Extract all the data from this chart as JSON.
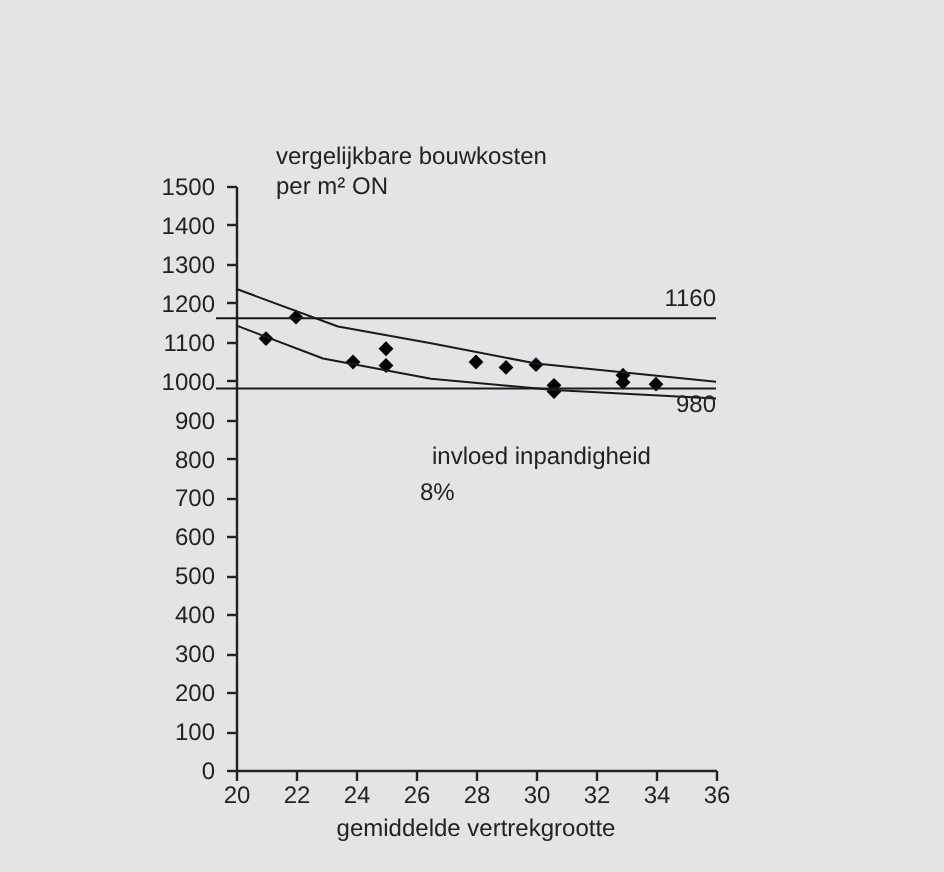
{
  "chart_data": {
    "type": "scatter",
    "ylabel": "vergelijkbare bouwkosten\nper m² ON",
    "xlabel": "gemiddelde vertrekgrootte",
    "xlim": [
      20,
      36
    ],
    "xticks": [
      20,
      22,
      24,
      26,
      28,
      30,
      32,
      34,
      36
    ],
    "ylim": [
      0,
      1500
    ],
    "yticks": [
      0,
      100,
      200,
      300,
      400,
      500,
      600,
      700,
      800,
      900,
      1000,
      1100,
      1200,
      1300,
      1400,
      1500
    ],
    "grid": false,
    "marker": "diamond",
    "series": [
      {
        "color": "#000000",
        "x": [
          21.0,
          22.0,
          23.9,
          25.0,
          25.0,
          28.0,
          29.0,
          30.0,
          30.6,
          30.6,
          32.9,
          32.9,
          34.0
        ],
        "values": [
          1108,
          1163,
          1048,
          1082,
          1039,
          1048,
          1034,
          1041,
          988,
          972,
          1014,
          996,
          991
        ]
      },
      {
        "type": "line",
        "color": "#1a1a1a",
        "marker": "none",
        "x": [
          20,
          23.4,
          26.5,
          30,
          36
        ],
        "values": [
          1236,
          1139,
          1096,
          1044,
          997
        ]
      },
      {
        "type": "line",
        "color": "#1a1a1a",
        "marker": "none",
        "x": [
          20,
          22.9,
          26.5,
          30.6,
          36
        ],
        "values": [
          1142,
          1057,
          1005,
          976,
          954
        ]
      }
    ],
    "ref_lines": [
      {
        "axis": "y",
        "value": 1160,
        "label": "1160",
        "color": "#1a1a1a"
      },
      {
        "axis": "y",
        "value": 980,
        "label": "980",
        "color": "#1a1a1a"
      }
    ],
    "annotations": [
      "invloed  inpandigheid",
      "8%"
    ]
  }
}
